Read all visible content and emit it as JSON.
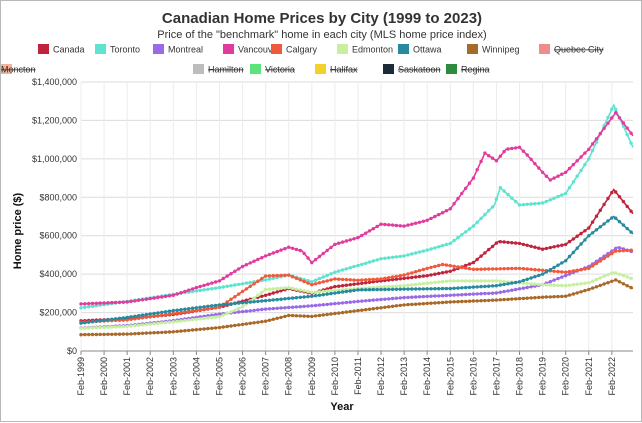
{
  "chart_data": {
    "type": "line",
    "title": "Canadian Home Prices by City (1999 to 2023)",
    "subtitle": "Price of the \"benchmark\" home in each city (MLS home price index)",
    "xlabel": "Year",
    "ylabel": "Home price ($)",
    "ylim": [
      0,
      1400000
    ],
    "yticks": [
      0,
      200000,
      400000,
      600000,
      800000,
      1000000,
      1200000,
      1400000
    ],
    "ytick_labels": [
      "$0",
      "$200,000",
      "$400,000",
      "$600,000",
      "$800,000",
      "$1,000,000",
      "$1,200,000",
      "$1,400,000"
    ],
    "xlim": [
      "1999-02",
      "2023-01"
    ],
    "xticks": [
      "Feb-1999",
      "Feb-2000",
      "Feb-2001",
      "Feb-2002",
      "Feb-2003",
      "Feb-2004",
      "Feb-2005",
      "Feb-2006",
      "Feb-2007",
      "Feb-2008",
      "Feb-2009",
      "Feb-2010",
      "Feb-2011",
      "Feb-2012",
      "Feb-2013",
      "Feb-2014",
      "Feb-2015",
      "Feb-2016",
      "Feb-2017",
      "Feb-2018",
      "Feb-2019",
      "Feb-2020",
      "Feb-2021",
      "Feb-2022"
    ],
    "grid": true,
    "legend_position": "top",
    "series": [
      {
        "name": "Canada",
        "color": "#c0243c",
        "hidden": false,
        "x": [
          "1999-02",
          "2001-02",
          "2003-02",
          "2005-02",
          "2007-02",
          "2008-02",
          "2009-02",
          "2010-02",
          "2011-02",
          "2012-02",
          "2013-02",
          "2014-02",
          "2015-02",
          "2016-02",
          "2017-03",
          "2018-02",
          "2019-02",
          "2020-02",
          "2021-02",
          "2022-03",
          "2023-01"
        ],
        "y": [
          157000,
          168000,
          190000,
          228000,
          290000,
          325000,
          300000,
          335000,
          350000,
          365000,
          378000,
          392000,
          415000,
          460000,
          570000,
          560000,
          530000,
          555000,
          640000,
          840000,
          715000
        ]
      },
      {
        "name": "Toronto",
        "color": "#5ee3cf",
        "hidden": false,
        "x": [
          "1999-02",
          "2001-02",
          "2003-02",
          "2005-02",
          "2007-02",
          "2008-02",
          "2009-02",
          "2010-02",
          "2011-02",
          "2012-02",
          "2013-02",
          "2014-02",
          "2015-02",
          "2016-02",
          "2017-01",
          "2017-04",
          "2018-02",
          "2019-02",
          "2020-02",
          "2021-02",
          "2022-03",
          "2023-01"
        ],
        "y": [
          225000,
          258000,
          295000,
          330000,
          370000,
          395000,
          360000,
          410000,
          445000,
          480000,
          495000,
          525000,
          560000,
          650000,
          760000,
          850000,
          760000,
          770000,
          820000,
          1000000,
          1280000,
          1060000
        ]
      },
      {
        "name": "Montreal",
        "color": "#9a6be6",
        "hidden": false,
        "x": [
          "1999-02",
          "2001-02",
          "2003-02",
          "2005-02",
          "2007-02",
          "2009-02",
          "2011-02",
          "2013-02",
          "2015-02",
          "2017-02",
          "2019-02",
          "2021-02",
          "2022-05",
          "2023-01"
        ],
        "y": [
          120000,
          132000,
          158000,
          192000,
          218000,
          235000,
          258000,
          278000,
          290000,
          302000,
          345000,
          440000,
          540000,
          515000
        ]
      },
      {
        "name": "Vancouver",
        "color": "#e23b9e",
        "hidden": false,
        "x": [
          "1999-02",
          "2001-02",
          "2003-02",
          "2004-02",
          "2005-02",
          "2006-02",
          "2007-02",
          "2008-02",
          "2008-09",
          "2009-02",
          "2010-02",
          "2011-02",
          "2012-02",
          "2013-02",
          "2014-02",
          "2015-02",
          "2016-02",
          "2016-08",
          "2017-02",
          "2017-07",
          "2018-02",
          "2018-06",
          "2019-02",
          "2019-06",
          "2020-02",
          "2021-02",
          "2022-04",
          "2023-01"
        ],
        "y": [
          245000,
          255000,
          290000,
          330000,
          365000,
          440000,
          495000,
          540000,
          520000,
          460000,
          555000,
          590000,
          660000,
          650000,
          680000,
          740000,
          900000,
          1030000,
          990000,
          1050000,
          1060000,
          1020000,
          930000,
          890000,
          930000,
          1050000,
          1240000,
          1120000
        ]
      },
      {
        "name": "Calgary",
        "color": "#f05a3c",
        "hidden": false,
        "x": [
          "1999-02",
          "2001-02",
          "2003-02",
          "2005-02",
          "2006-02",
          "2007-02",
          "2008-02",
          "2009-02",
          "2010-02",
          "2011-02",
          "2012-02",
          "2013-02",
          "2014-02",
          "2014-10",
          "2016-02",
          "2018-02",
          "2020-02",
          "2021-02",
          "2022-04",
          "2023-01"
        ],
        "y": [
          150000,
          162000,
          195000,
          228000,
          310000,
          390000,
          395000,
          345000,
          375000,
          368000,
          375000,
          395000,
          430000,
          450000,
          425000,
          430000,
          410000,
          430000,
          520000,
          525000
        ]
      },
      {
        "name": "Edmonton",
        "color": "#c6f0a0",
        "hidden": false,
        "x": [
          "1999-02",
          "2001-02",
          "2003-02",
          "2005-02",
          "2006-02",
          "2007-02",
          "2008-02",
          "2009-02",
          "2011-02",
          "2013-02",
          "2015-02",
          "2017-02",
          "2019-02",
          "2020-02",
          "2021-02",
          "2022-03",
          "2023-01"
        ],
        "y": [
          118000,
          128000,
          152000,
          178000,
          230000,
          320000,
          330000,
          305000,
          325000,
          340000,
          365000,
          365000,
          345000,
          340000,
          355000,
          410000,
          375000
        ]
      },
      {
        "name": "Ottawa",
        "color": "#278a9e",
        "hidden": false,
        "x": [
          "1999-02",
          "2001-02",
          "2003-02",
          "2005-02",
          "2007-02",
          "2009-02",
          "2011-02",
          "2013-02",
          "2015-02",
          "2017-02",
          "2018-02",
          "2019-02",
          "2020-02",
          "2021-02",
          "2022-03",
          "2023-01"
        ],
        "y": [
          145000,
          175000,
          210000,
          240000,
          262000,
          285000,
          318000,
          322000,
          325000,
          340000,
          360000,
          400000,
          470000,
          600000,
          700000,
          610000
        ]
      },
      {
        "name": "Winnipeg",
        "color": "#a86a2a",
        "hidden": false,
        "x": [
          "1999-02",
          "2001-02",
          "2003-02",
          "2005-02",
          "2007-02",
          "2008-02",
          "2009-02",
          "2011-02",
          "2013-02",
          "2015-02",
          "2017-02",
          "2019-02",
          "2020-02",
          "2021-02",
          "2022-04",
          "2023-01"
        ],
        "y": [
          85000,
          88000,
          100000,
          122000,
          155000,
          185000,
          180000,
          210000,
          240000,
          255000,
          265000,
          280000,
          285000,
          320000,
          370000,
          325000
        ]
      },
      {
        "name": "Quebec City",
        "color": "#f08c8c",
        "hidden": true,
        "x": [],
        "y": []
      },
      {
        "name": "Hamilton",
        "color": "#bdbdbd",
        "hidden": true,
        "x": [],
        "y": []
      },
      {
        "name": "Victoria",
        "color": "#5ce37a",
        "hidden": true,
        "x": [],
        "y": []
      },
      {
        "name": "Halifax",
        "color": "#f5cf2a",
        "hidden": true,
        "x": [],
        "y": []
      },
      {
        "name": "Saskatoon",
        "color": "#1c2a3a",
        "hidden": true,
        "x": [],
        "y": []
      },
      {
        "name": "Regina",
        "color": "#2e8a3e",
        "hidden": true,
        "x": [],
        "y": []
      },
      {
        "name": "Moncton",
        "color": "#f5b49a",
        "hidden": true,
        "x": [],
        "y": []
      }
    ]
  }
}
